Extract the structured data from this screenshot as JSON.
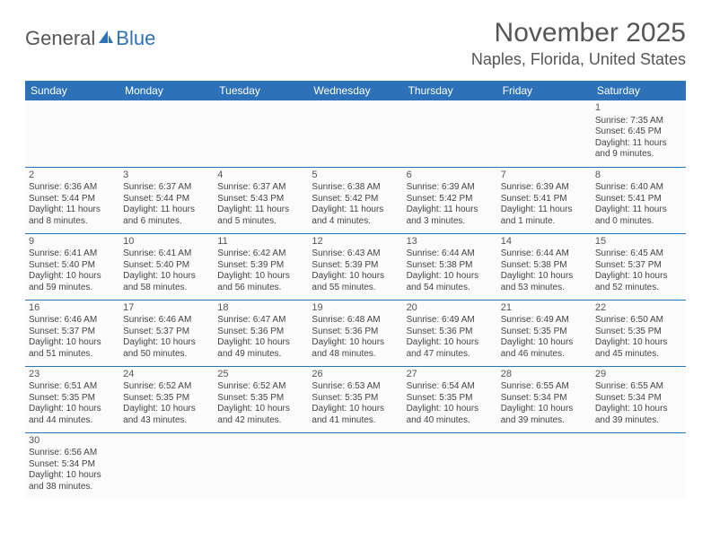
{
  "logo": {
    "part1": "General",
    "part2": "Blue"
  },
  "header": {
    "month_year": "November 2025",
    "location": "Naples, Florida, United States"
  },
  "colors": {
    "header_bg": "#2d72b8",
    "header_text": "#ffffff",
    "cell_border": "#2d72b8",
    "text": "#444444"
  },
  "weekdays": [
    "Sunday",
    "Monday",
    "Tuesday",
    "Wednesday",
    "Thursday",
    "Friday",
    "Saturday"
  ],
  "weeks": [
    [
      null,
      null,
      null,
      null,
      null,
      null,
      {
        "n": "1",
        "sr": "Sunrise: 7:35 AM",
        "ss": "Sunset: 6:45 PM",
        "d1": "Daylight: 11 hours",
        "d2": "and 9 minutes."
      }
    ],
    [
      {
        "n": "2",
        "sr": "Sunrise: 6:36 AM",
        "ss": "Sunset: 5:44 PM",
        "d1": "Daylight: 11 hours",
        "d2": "and 8 minutes."
      },
      {
        "n": "3",
        "sr": "Sunrise: 6:37 AM",
        "ss": "Sunset: 5:44 PM",
        "d1": "Daylight: 11 hours",
        "d2": "and 6 minutes."
      },
      {
        "n": "4",
        "sr": "Sunrise: 6:37 AM",
        "ss": "Sunset: 5:43 PM",
        "d1": "Daylight: 11 hours",
        "d2": "and 5 minutes."
      },
      {
        "n": "5",
        "sr": "Sunrise: 6:38 AM",
        "ss": "Sunset: 5:42 PM",
        "d1": "Daylight: 11 hours",
        "d2": "and 4 minutes."
      },
      {
        "n": "6",
        "sr": "Sunrise: 6:39 AM",
        "ss": "Sunset: 5:42 PM",
        "d1": "Daylight: 11 hours",
        "d2": "and 3 minutes."
      },
      {
        "n": "7",
        "sr": "Sunrise: 6:39 AM",
        "ss": "Sunset: 5:41 PM",
        "d1": "Daylight: 11 hours",
        "d2": "and 1 minute."
      },
      {
        "n": "8",
        "sr": "Sunrise: 6:40 AM",
        "ss": "Sunset: 5:41 PM",
        "d1": "Daylight: 11 hours",
        "d2": "and 0 minutes."
      }
    ],
    [
      {
        "n": "9",
        "sr": "Sunrise: 6:41 AM",
        "ss": "Sunset: 5:40 PM",
        "d1": "Daylight: 10 hours",
        "d2": "and 59 minutes."
      },
      {
        "n": "10",
        "sr": "Sunrise: 6:41 AM",
        "ss": "Sunset: 5:40 PM",
        "d1": "Daylight: 10 hours",
        "d2": "and 58 minutes."
      },
      {
        "n": "11",
        "sr": "Sunrise: 6:42 AM",
        "ss": "Sunset: 5:39 PM",
        "d1": "Daylight: 10 hours",
        "d2": "and 56 minutes."
      },
      {
        "n": "12",
        "sr": "Sunrise: 6:43 AM",
        "ss": "Sunset: 5:39 PM",
        "d1": "Daylight: 10 hours",
        "d2": "and 55 minutes."
      },
      {
        "n": "13",
        "sr": "Sunrise: 6:44 AM",
        "ss": "Sunset: 5:38 PM",
        "d1": "Daylight: 10 hours",
        "d2": "and 54 minutes."
      },
      {
        "n": "14",
        "sr": "Sunrise: 6:44 AM",
        "ss": "Sunset: 5:38 PM",
        "d1": "Daylight: 10 hours",
        "d2": "and 53 minutes."
      },
      {
        "n": "15",
        "sr": "Sunrise: 6:45 AM",
        "ss": "Sunset: 5:37 PM",
        "d1": "Daylight: 10 hours",
        "d2": "and 52 minutes."
      }
    ],
    [
      {
        "n": "16",
        "sr": "Sunrise: 6:46 AM",
        "ss": "Sunset: 5:37 PM",
        "d1": "Daylight: 10 hours",
        "d2": "and 51 minutes."
      },
      {
        "n": "17",
        "sr": "Sunrise: 6:46 AM",
        "ss": "Sunset: 5:37 PM",
        "d1": "Daylight: 10 hours",
        "d2": "and 50 minutes."
      },
      {
        "n": "18",
        "sr": "Sunrise: 6:47 AM",
        "ss": "Sunset: 5:36 PM",
        "d1": "Daylight: 10 hours",
        "d2": "and 49 minutes."
      },
      {
        "n": "19",
        "sr": "Sunrise: 6:48 AM",
        "ss": "Sunset: 5:36 PM",
        "d1": "Daylight: 10 hours",
        "d2": "and 48 minutes."
      },
      {
        "n": "20",
        "sr": "Sunrise: 6:49 AM",
        "ss": "Sunset: 5:36 PM",
        "d1": "Daylight: 10 hours",
        "d2": "and 47 minutes."
      },
      {
        "n": "21",
        "sr": "Sunrise: 6:49 AM",
        "ss": "Sunset: 5:35 PM",
        "d1": "Daylight: 10 hours",
        "d2": "and 46 minutes."
      },
      {
        "n": "22",
        "sr": "Sunrise: 6:50 AM",
        "ss": "Sunset: 5:35 PM",
        "d1": "Daylight: 10 hours",
        "d2": "and 45 minutes."
      }
    ],
    [
      {
        "n": "23",
        "sr": "Sunrise: 6:51 AM",
        "ss": "Sunset: 5:35 PM",
        "d1": "Daylight: 10 hours",
        "d2": "and 44 minutes."
      },
      {
        "n": "24",
        "sr": "Sunrise: 6:52 AM",
        "ss": "Sunset: 5:35 PM",
        "d1": "Daylight: 10 hours",
        "d2": "and 43 minutes."
      },
      {
        "n": "25",
        "sr": "Sunrise: 6:52 AM",
        "ss": "Sunset: 5:35 PM",
        "d1": "Daylight: 10 hours",
        "d2": "and 42 minutes."
      },
      {
        "n": "26",
        "sr": "Sunrise: 6:53 AM",
        "ss": "Sunset: 5:35 PM",
        "d1": "Daylight: 10 hours",
        "d2": "and 41 minutes."
      },
      {
        "n": "27",
        "sr": "Sunrise: 6:54 AM",
        "ss": "Sunset: 5:35 PM",
        "d1": "Daylight: 10 hours",
        "d2": "and 40 minutes."
      },
      {
        "n": "28",
        "sr": "Sunrise: 6:55 AM",
        "ss": "Sunset: 5:34 PM",
        "d1": "Daylight: 10 hours",
        "d2": "and 39 minutes."
      },
      {
        "n": "29",
        "sr": "Sunrise: 6:55 AM",
        "ss": "Sunset: 5:34 PM",
        "d1": "Daylight: 10 hours",
        "d2": "and 39 minutes."
      }
    ],
    [
      {
        "n": "30",
        "sr": "Sunrise: 6:56 AM",
        "ss": "Sunset: 5:34 PM",
        "d1": "Daylight: 10 hours",
        "d2": "and 38 minutes."
      },
      null,
      null,
      null,
      null,
      null,
      null
    ]
  ]
}
